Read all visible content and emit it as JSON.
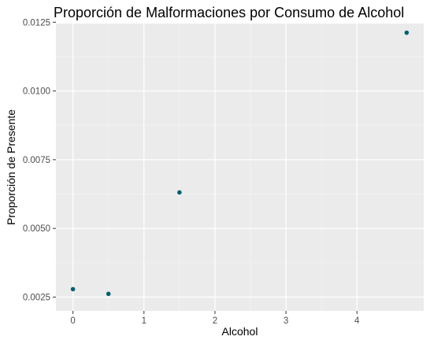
{
  "chart_data": {
    "type": "scatter",
    "title": "Proporción de Malformaciones por Consumo de Alcohol",
    "xlabel": "Alcohol",
    "ylabel": "Proporción de Presente",
    "xlim": [
      -0.24,
      4.94
    ],
    "ylim": [
      0.002,
      0.01245
    ],
    "x_ticks": [
      0,
      1,
      2,
      3,
      4
    ],
    "x_tick_labels": [
      "0",
      "1",
      "2",
      "3",
      "4"
    ],
    "y_ticks": [
      0.0025,
      0.005,
      0.0075,
      0.01,
      0.0125
    ],
    "y_tick_labels": [
      "0.0025",
      "0.0050",
      "0.0075",
      "0.0100",
      "0.0125"
    ],
    "grid": true,
    "colors": {
      "panel_background": "#ebebeb",
      "grid_major": "#ffffff",
      "grid_minor": "#f5f5f5",
      "point": "#00616f",
      "tick_mark": "#333333"
    },
    "series": [
      {
        "points": [
          {
            "x": 0,
            "y": 0.00279
          },
          {
            "x": 0.5,
            "y": 0.00262
          },
          {
            "x": 1.5,
            "y": 0.00631
          },
          {
            "x": 4.7,
            "y": 0.01212
          }
        ]
      }
    ]
  }
}
